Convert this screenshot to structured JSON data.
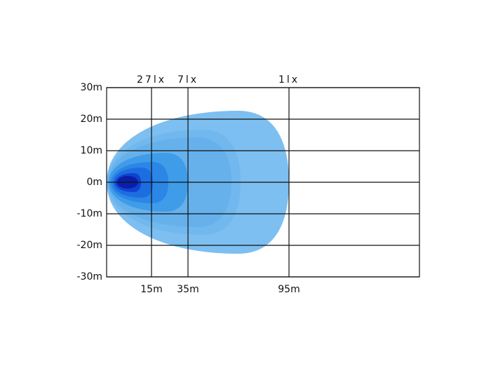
{
  "chart_data": {
    "type": "beam",
    "ylim": [
      -30,
      30
    ],
    "yticks": [
      {
        "value": 30,
        "label": "30m"
      },
      {
        "value": 20,
        "label": "20m"
      },
      {
        "value": 10,
        "label": "10m"
      },
      {
        "value": 0,
        "label": "0m"
      },
      {
        "value": -10,
        "label": "-10m"
      },
      {
        "value": -20,
        "label": "-20m"
      },
      {
        "value": -30,
        "label": "-30m"
      }
    ],
    "distance_labels": [
      "15m",
      "35m",
      "95m"
    ],
    "lux_labels": [
      "27lx",
      "7lx",
      "1lx"
    ],
    "grid": true
  }
}
